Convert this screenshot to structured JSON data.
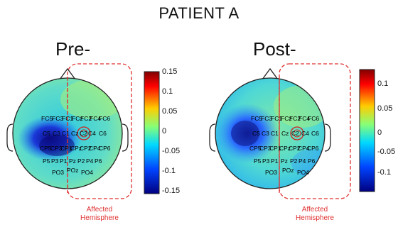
{
  "title": "PATIENT A",
  "panels": [
    {
      "label": "Pre-",
      "colorbar_ticks": [
        "0.15",
        "0.1",
        "0.05",
        "0",
        "-0.05",
        "-0.1",
        "-0.15"
      ],
      "annotation_line1": "Affected",
      "annotation_line2": "Hemisphere"
    },
    {
      "label": "Post-",
      "colorbar_ticks": [
        "0.1",
        "0.05",
        "0",
        "-0.05",
        "-0.1"
      ],
      "annotation_line1": "Affected",
      "annotation_line2": "Hemisphere"
    }
  ],
  "electrodes": {
    "row1": [
      "FC5",
      "FC3",
      "FC1",
      "FCz",
      "FC2",
      "FC4",
      "FC6"
    ],
    "row2": [
      "C5",
      "C3",
      "C1",
      "Cz",
      "C2",
      "C4",
      "C6"
    ],
    "row3": [
      "CP5",
      "CP3",
      "CP1",
      "CPz",
      "CP2",
      "CP4",
      "CP6"
    ],
    "row4": [
      "P5",
      "P3",
      "P1",
      "Pz",
      "P2",
      "P4",
      "P6"
    ],
    "row5": [
      "PO3",
      "POz",
      "PO4"
    ]
  },
  "colors": {
    "annotation": "#e03030"
  }
}
